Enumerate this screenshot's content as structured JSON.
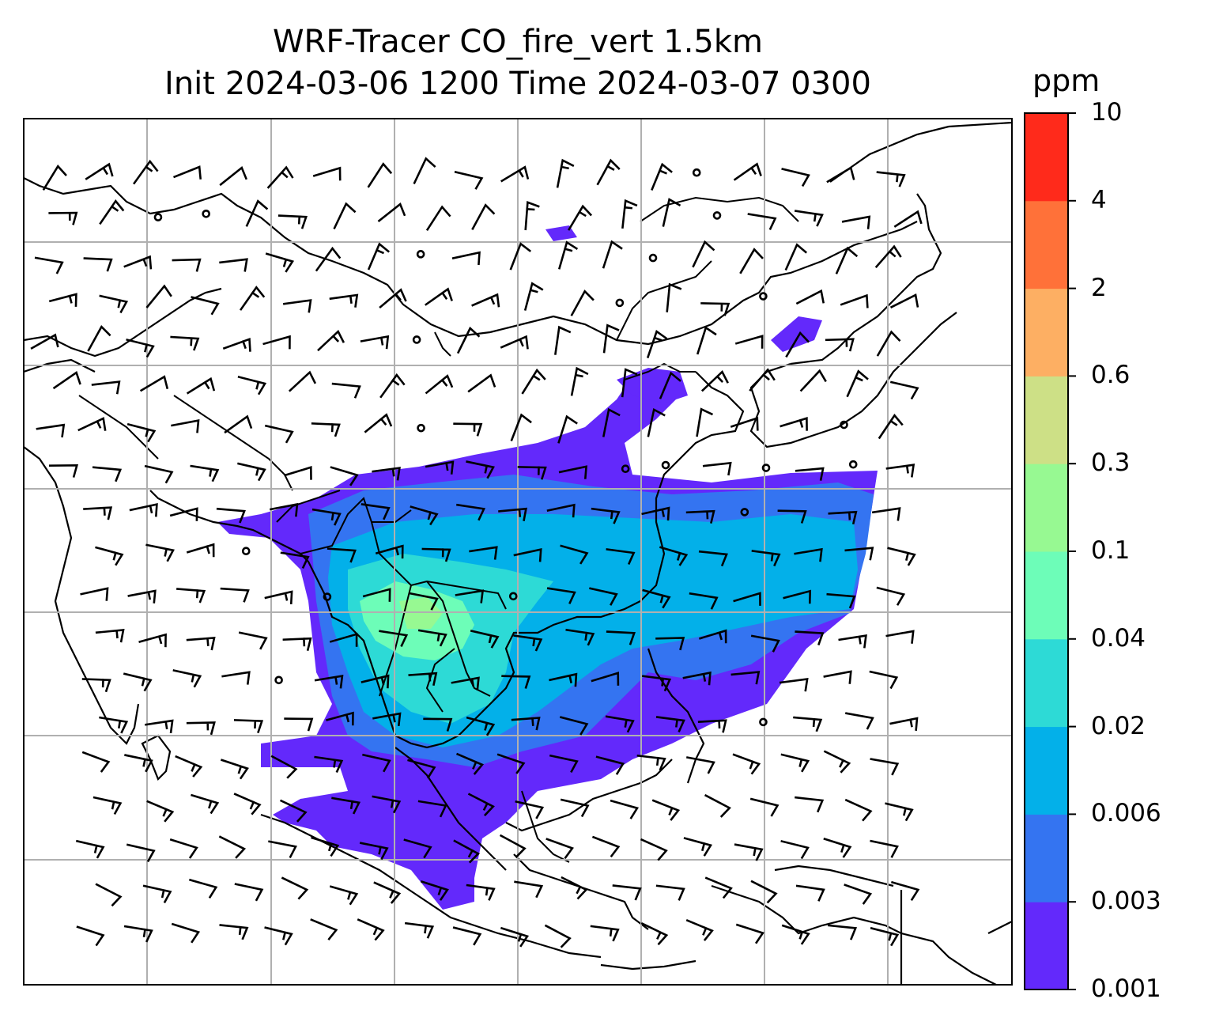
{
  "title": {
    "line1": "WRF-Tracer CO_fire_vert 1.5km",
    "line2": "Init 2024-03-06 1200 Time 2024-03-07 0300"
  },
  "colorbar": {
    "unit": "ppm",
    "levels": [
      "0.001",
      "0.003",
      "0.006",
      "0.02",
      "0.04",
      "0.1",
      "0.3",
      "0.6",
      "2",
      "4",
      "10"
    ],
    "colors": [
      "#6329fb",
      "#3474f1",
      "#03b0e9",
      "#2ddad6",
      "#6dfdb8",
      "#97f992",
      "#cde086",
      "#fdaf63",
      "#ff7139",
      "#ff2a1b"
    ]
  },
  "map": {
    "variable": "CO_fire_vert",
    "level": "1.5km",
    "grid": "on",
    "overlays": [
      "coastlines",
      "country-borders",
      "wind-barbs"
    ]
  }
}
